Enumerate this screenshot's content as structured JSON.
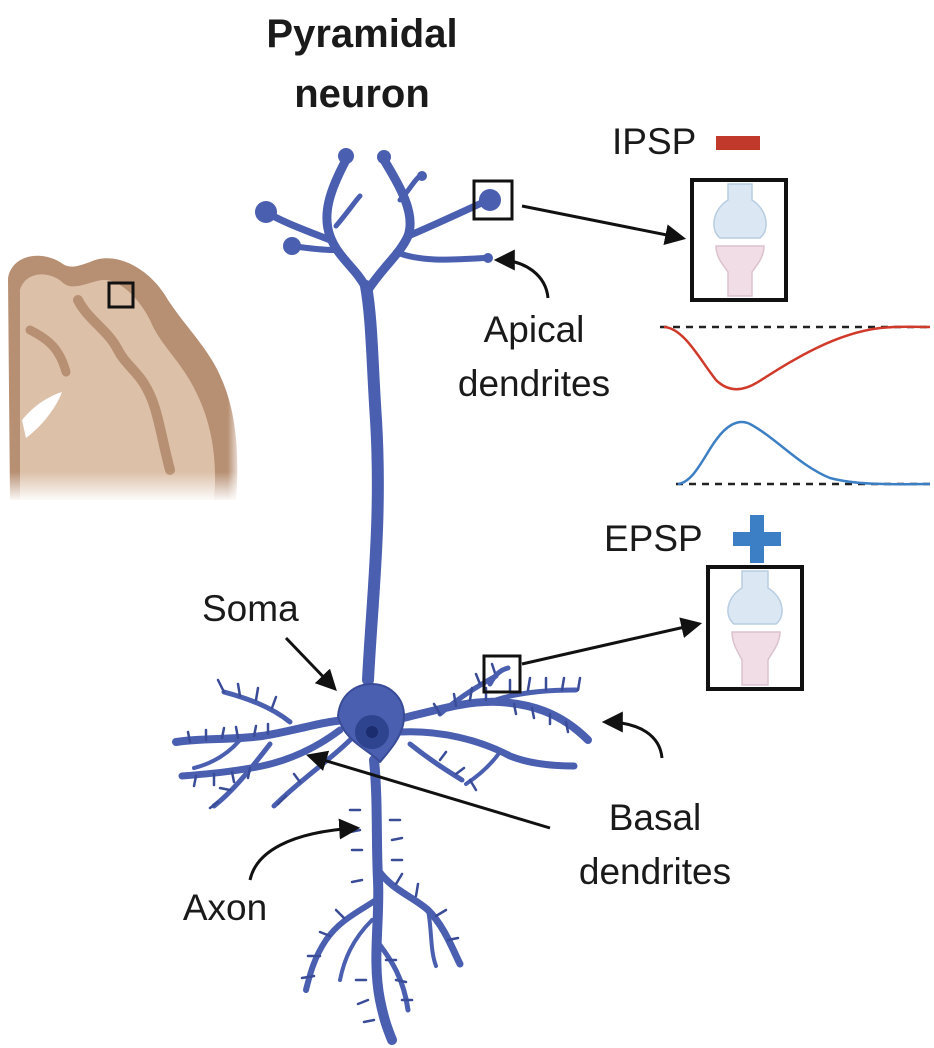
{
  "title": {
    "line1": "Pyramidal",
    "line2": "neuron"
  },
  "labels": {
    "apical_line1": "Apical",
    "apical_line2": "dendrites",
    "soma": "Soma",
    "basal_line1": "Basal",
    "basal_line2": "dendrites",
    "axon": "Axon",
    "ipsp": "IPSP",
    "epsp": "EPSP"
  },
  "icons": {
    "ipsp_sign": "minus-icon",
    "epsp_sign": "plus-icon"
  },
  "colors": {
    "neuron": "#4a5fb0",
    "neuron_dark": "#3a4c98",
    "nucleus": "#233a8a",
    "ipsp": "#d03a2a",
    "epsp": "#3d7fc4",
    "brain_tissue": "#d2b49c",
    "brain_gray": "#b78f72",
    "presynaptic": "#d9e7f3",
    "postsynaptic": "#f0dde6"
  }
}
